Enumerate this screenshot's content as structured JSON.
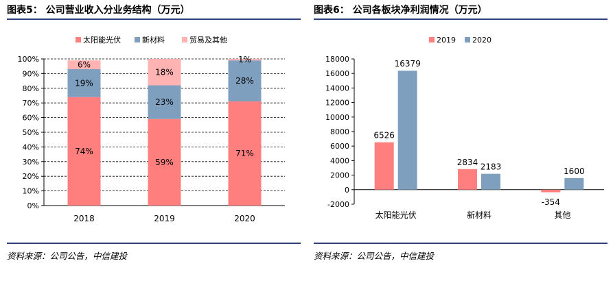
{
  "left": {
    "fig_title": "图表5： 公司营业收入分业务结构（万元）",
    "source": "资料来源：公司公告，中信建投"
  },
  "right": {
    "fig_title": "图表6： 公司各板块净利润情况（万元）",
    "source": "资料来源：公司公告，中信建投"
  },
  "colors": {
    "solar": "#ff7f7f",
    "material": "#7f9fbf",
    "trade": "#ffb3b3",
    "y2019": "#ff7f7f",
    "y2020": "#7f9fbf",
    "rule": "#2d3f7a"
  },
  "chart_data": [
    {
      "type": "bar",
      "stacked": true,
      "percent": true,
      "title": "",
      "categories": [
        "2018",
        "2019",
        "2020"
      ],
      "series": [
        {
          "name": "太阳能光伏",
          "values": [
            74,
            59,
            71
          ],
          "labels": [
            "74%",
            "59%",
            "71%"
          ]
        },
        {
          "name": "新材料",
          "values": [
            19,
            23,
            28
          ],
          "labels": [
            "19%",
            "23%",
            "28%"
          ]
        },
        {
          "name": "贸易及其他",
          "values": [
            6,
            18,
            1
          ],
          "labels": [
            "6%",
            "18%",
            "1%"
          ]
        }
      ],
      "ylim": [
        0,
        100
      ],
      "yticks": [
        "0%",
        "10%",
        "20%",
        "30%",
        "40%",
        "50%",
        "60%",
        "70%",
        "80%",
        "90%",
        "100%"
      ],
      "legend": "top",
      "grid": true
    },
    {
      "type": "bar",
      "title": "",
      "categories": [
        "太阳能光伏",
        "新材料",
        "其他"
      ],
      "series": [
        {
          "name": "2019",
          "values": [
            6526,
            2834,
            -354
          ],
          "labels": [
            "6526",
            "2834",
            "-354"
          ]
        },
        {
          "name": "2020",
          "values": [
            16379,
            2183,
            1600
          ],
          "labels": [
            "16379",
            "2183",
            "1600"
          ]
        }
      ],
      "ylim": [
        -2000,
        18000
      ],
      "yticks": [
        "-2000",
        "0",
        "2000",
        "4000",
        "6000",
        "8000",
        "10000",
        "12000",
        "14000",
        "16000",
        "18000"
      ],
      "legend": "top",
      "grid": false
    }
  ]
}
